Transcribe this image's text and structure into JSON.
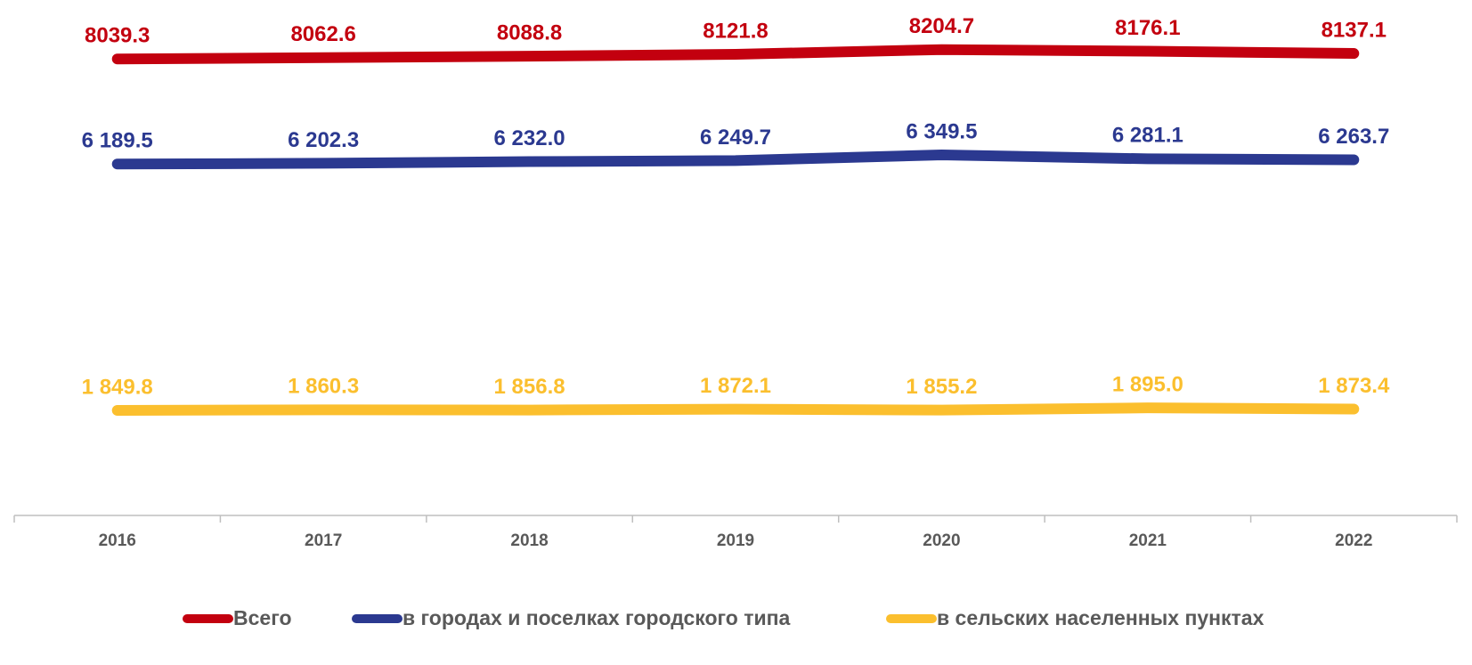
{
  "chart_data": {
    "type": "line",
    "categories": [
      "2016",
      "2017",
      "2018",
      "2019",
      "2020",
      "2021",
      "2022"
    ],
    "ylim": [
      0,
      9000
    ],
    "series": [
      {
        "name": "Всего",
        "color": "#c3000f",
        "values": [
          8039.3,
          8062.6,
          8088.8,
          8121.8,
          8204.7,
          8176.1,
          8137.1
        ]
      },
      {
        "name": "в городах и поселках городского типа",
        "color": "#2b3990",
        "values": [
          6189.5,
          6202.3,
          6232.0,
          6249.7,
          6349.5,
          6281.1,
          6263.7
        ],
        "value_labels": [
          "6 189.5",
          "6 202.3",
          "6 232.0",
          "6 249.7",
          "6 349.5",
          "6 281.1",
          "6 263.7"
        ]
      },
      {
        "name": "в сельских населенных пунктах",
        "color": "#fbbf2e",
        "values": [
          1849.8,
          1860.3,
          1856.8,
          1872.1,
          1855.2,
          1895.0,
          1873.4
        ],
        "value_labels": [
          "1 849.8",
          "1 860.3",
          "1 856.8",
          "1 872.1",
          "1 855.2",
          "1 895.0",
          "1 873.4"
        ]
      }
    ]
  }
}
